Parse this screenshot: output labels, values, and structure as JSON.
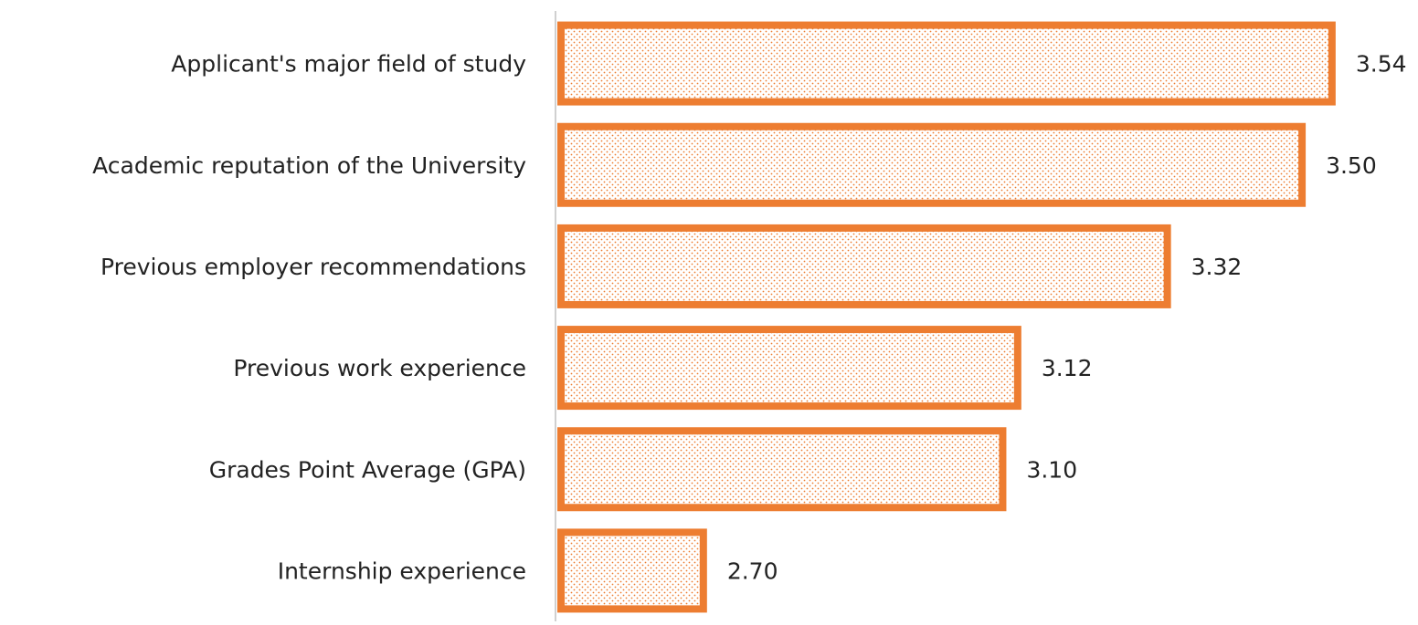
{
  "chart_data": {
    "type": "barh",
    "categories": [
      "Applicant's major field of study",
      "Academic reputation of the University",
      "Previous employer recommendations",
      "Previous work experience",
      "Grades Point Average (GPA)",
      "Internship experience"
    ],
    "values": [
      3.54,
      3.5,
      3.32,
      3.12,
      3.1,
      2.7
    ],
    "value_labels": [
      "3.54",
      "3.50",
      "3.32",
      "3.12",
      "3.10",
      "2.70"
    ],
    "color": "#ed7d31",
    "xlim": [
      2.5,
      3.6
    ]
  }
}
